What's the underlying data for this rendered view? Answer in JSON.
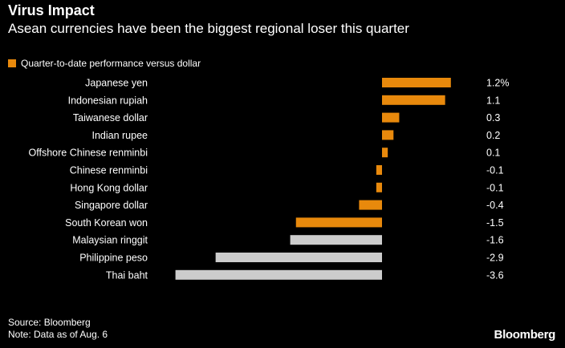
{
  "header": {
    "title": "Virus Impact",
    "subtitle": "Asean currencies have been the biggest regional loser this quarter"
  },
  "legend": {
    "label": "Quarter-to-date performance versus dollar"
  },
  "colors": {
    "highlight": "#E8890C",
    "muted": "#CCCCCC",
    "background": "#000000",
    "text": "#FFFFFF"
  },
  "chart_data": {
    "type": "bar",
    "orientation": "horizontal",
    "title": "Virus Impact",
    "subtitle": "Asean currencies have been the biggest regional loser this quarter",
    "xlabel": "",
    "ylabel": "",
    "legend": [
      "Quarter-to-date performance versus dollar"
    ],
    "categories": [
      "Japanese yen",
      "Indonesian rupiah",
      "Taiwanese dollar",
      "Indian rupee",
      "Offshore Chinese renminbi",
      "Chinese renminbi",
      "Hong Kong dollar",
      "Singapore dollar",
      "South Korean won",
      "Malaysian ringgit",
      "Philippine peso",
      "Thai baht"
    ],
    "values": [
      1.2,
      1.1,
      0.3,
      0.2,
      0.1,
      -0.1,
      -0.1,
      -0.4,
      -1.5,
      -1.6,
      -2.9,
      -3.6
    ],
    "value_labels": [
      "1.2%",
      "1.1",
      "0.3",
      "0.2",
      "0.1",
      "-0.1",
      "-0.1",
      "-0.4",
      "-1.5",
      "-1.6",
      "-2.9",
      "-3.6"
    ],
    "highlighted": [
      true,
      true,
      true,
      true,
      true,
      true,
      true,
      true,
      true,
      false,
      false,
      false
    ],
    "xlim": [
      -3.6,
      1.2
    ],
    "grid": false
  },
  "footer": {
    "source": "Source: Bloomberg",
    "note": "Note: Data as of Aug. 6",
    "brand": "Bloomberg"
  }
}
